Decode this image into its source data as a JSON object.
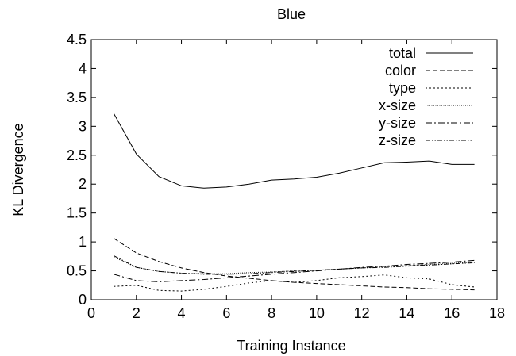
{
  "chart_data": {
    "type": "line",
    "title": "Blue",
    "xlabel": "Training Instance",
    "ylabel": "KL Divergence",
    "xlim": [
      0,
      18
    ],
    "ylim": [
      0,
      4.5
    ],
    "xticks": [
      "0",
      "2",
      "4",
      "6",
      "8",
      "10",
      "12",
      "14",
      "16",
      "18"
    ],
    "yticks": [
      "0",
      "0.5",
      "1",
      "1.5",
      "2",
      "2.5",
      "3",
      "3.5",
      "4",
      "4.5"
    ],
    "grid": false,
    "legend_position": "top-right",
    "x": [
      1,
      2,
      3,
      4,
      5,
      6,
      7,
      8,
      9,
      10,
      11,
      12,
      13,
      14,
      15,
      16,
      17
    ],
    "series": [
      {
        "name": "total",
        "dash": "none",
        "values": [
          3.22,
          2.52,
          2.13,
          1.97,
          1.93,
          1.95,
          2.0,
          2.07,
          2.09,
          2.12,
          2.19,
          2.28,
          2.37,
          2.38,
          2.4,
          2.34,
          2.34
        ]
      },
      {
        "name": "color",
        "dash": "6,3",
        "values": [
          1.06,
          0.81,
          0.66,
          0.55,
          0.47,
          0.41,
          0.37,
          0.33,
          0.3,
          0.28,
          0.26,
          0.24,
          0.22,
          0.21,
          0.19,
          0.18,
          0.17
        ]
      },
      {
        "name": "type",
        "dash": "2,3",
        "values": [
          0.23,
          0.25,
          0.16,
          0.15,
          0.18,
          0.23,
          0.29,
          0.33,
          0.3,
          0.33,
          0.38,
          0.4,
          0.43,
          0.38,
          0.36,
          0.26,
          0.22
        ]
      },
      {
        "name": "x-size",
        "dash": "1,1.5",
        "values": [
          0.74,
          0.56,
          0.49,
          0.46,
          0.45,
          0.45,
          0.47,
          0.48,
          0.5,
          0.51,
          0.53,
          0.55,
          0.57,
          0.59,
          0.61,
          0.63,
          0.65
        ]
      },
      {
        "name": "y-size",
        "dash": "8,3,2,3",
        "values": [
          0.44,
          0.33,
          0.31,
          0.33,
          0.35,
          0.38,
          0.41,
          0.44,
          0.47,
          0.5,
          0.53,
          0.56,
          0.58,
          0.61,
          0.63,
          0.65,
          0.68
        ]
      },
      {
        "name": "z-size",
        "dash": "6,2,1.5,2,1.5,2",
        "values": [
          0.76,
          0.56,
          0.49,
          0.46,
          0.44,
          0.44,
          0.45,
          0.47,
          0.49,
          0.51,
          0.53,
          0.55,
          0.56,
          0.58,
          0.6,
          0.62,
          0.64
        ]
      }
    ]
  }
}
